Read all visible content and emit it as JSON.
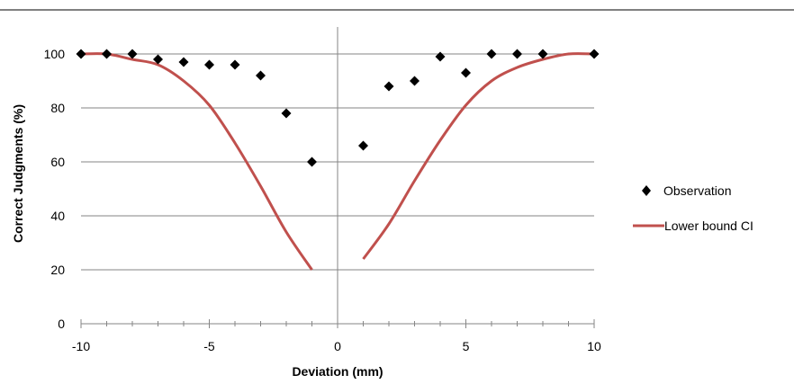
{
  "chart_data": {
    "type": "scatter",
    "title": "",
    "xlabel": "Deviation (mm)",
    "ylabel": "Correct  Judgments (%)",
    "xlim": [
      -10,
      10
    ],
    "ylim": [
      0,
      110
    ],
    "x_ticks": [
      -10,
      -5,
      0,
      5,
      10
    ],
    "y_ticks": [
      0,
      20,
      40,
      60,
      80,
      100
    ],
    "x_tick_labels": [
      "-10",
      "-5",
      "0",
      "5",
      "10"
    ],
    "y_tick_labels": [
      "0",
      "20",
      "40",
      "60",
      "80",
      "100"
    ],
    "grid": "horizontal",
    "legend_position": "right",
    "series": [
      {
        "name": "Observation",
        "kind": "scatter",
        "marker": "diamond",
        "color": "#000000",
        "x": [
          -10,
          -9,
          -8,
          -7,
          -6,
          -5,
          -4,
          -3,
          -2,
          -1,
          1,
          2,
          3,
          4,
          5,
          6,
          7,
          8,
          10
        ],
        "y": [
          100,
          100,
          100,
          98,
          97,
          96,
          96,
          92,
          78,
          60,
          66,
          88,
          90,
          99,
          93,
          100,
          100,
          100,
          100
        ]
      },
      {
        "name": "Lower bound CI",
        "kind": "line",
        "color": "#c0504d",
        "segments": [
          {
            "x": [
              -10,
              -9,
              -8,
              -7,
              -6,
              -5,
              -4,
              -3,
              -2,
              -1
            ],
            "y": [
              100,
              100,
              98,
              96,
              90,
              81,
              67,
              51,
              34,
              20
            ]
          },
          {
            "x": [
              1,
              2,
              3,
              4,
              5,
              6,
              7,
              8,
              9,
              10
            ],
            "y": [
              24,
              37,
              53,
              68,
              81,
              90,
              95,
              98,
              100,
              100
            ]
          }
        ]
      }
    ]
  }
}
